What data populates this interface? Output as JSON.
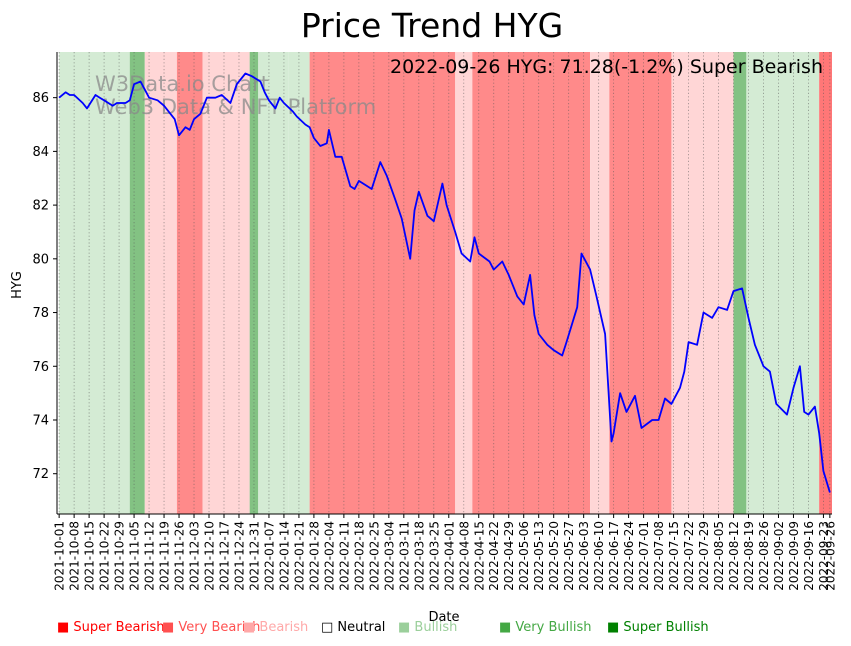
{
  "chart_data": {
    "type": "line",
    "title": "Price Trend HYG",
    "xlabel": "Date",
    "ylabel": "HYG",
    "annotation": "2022-09-26 HYG: 71.28(-1.2%) Super Bearish",
    "watermark": [
      "W3Data.io Chart",
      "Web3 Data & NFT Platform"
    ],
    "ylim": [
      70.5,
      87.7
    ],
    "yticks": [
      72,
      74,
      76,
      78,
      80,
      82,
      84,
      86
    ],
    "xrange": [
      "2021-09-30",
      "2022-09-27"
    ],
    "xticks": [
      "2021-10-01",
      "2021-10-08",
      "2021-10-15",
      "2021-10-22",
      "2021-10-29",
      "2021-11-05",
      "2021-11-12",
      "2021-11-19",
      "2021-11-26",
      "2021-12-03",
      "2021-12-10",
      "2021-12-17",
      "2021-12-24",
      "2021-12-31",
      "2022-01-07",
      "2022-01-14",
      "2022-01-21",
      "2022-01-28",
      "2022-02-04",
      "2022-02-11",
      "2022-02-18",
      "2022-02-25",
      "2022-03-04",
      "2022-03-11",
      "2022-03-18",
      "2022-03-25",
      "2022-04-01",
      "2022-04-08",
      "2022-04-15",
      "2022-04-22",
      "2022-04-29",
      "2022-05-06",
      "2022-05-13",
      "2022-05-20",
      "2022-05-27",
      "2022-06-03",
      "2022-06-10",
      "2022-06-17",
      "2022-06-24",
      "2022-07-01",
      "2022-07-08",
      "2022-07-15",
      "2022-07-22",
      "2022-07-29",
      "2022-08-05",
      "2022-08-12",
      "2022-08-19",
      "2022-08-26",
      "2022-09-02",
      "2022-09-09",
      "2022-09-16",
      "2022-09-23",
      "2022-09-26"
    ],
    "series": [
      {
        "name": "HYG",
        "color": "#0000ff",
        "points": [
          [
            "2021-10-01",
            86.0
          ],
          [
            "2021-10-04",
            86.2
          ],
          [
            "2021-10-06",
            86.1
          ],
          [
            "2021-10-08",
            86.1
          ],
          [
            "2021-10-12",
            85.8
          ],
          [
            "2021-10-14",
            85.6
          ],
          [
            "2021-10-18",
            86.1
          ],
          [
            "2021-10-20",
            86.0
          ],
          [
            "2021-10-22",
            85.9
          ],
          [
            "2021-10-26",
            85.7
          ],
          [
            "2021-10-28",
            85.8
          ],
          [
            "2021-11-01",
            85.8
          ],
          [
            "2021-11-03",
            85.9
          ],
          [
            "2021-11-05",
            86.5
          ],
          [
            "2021-11-08",
            86.6
          ],
          [
            "2021-11-10",
            86.3
          ],
          [
            "2021-11-12",
            86.0
          ],
          [
            "2021-11-16",
            85.9
          ],
          [
            "2021-11-19",
            85.7
          ],
          [
            "2021-11-24",
            85.2
          ],
          [
            "2021-11-26",
            84.6
          ],
          [
            "2021-11-29",
            84.9
          ],
          [
            "2021-12-01",
            84.8
          ],
          [
            "2021-12-03",
            85.2
          ],
          [
            "2021-12-06",
            85.4
          ],
          [
            "2021-12-09",
            86.0
          ],
          [
            "2021-12-13",
            86.0
          ],
          [
            "2021-12-16",
            86.1
          ],
          [
            "2021-12-20",
            85.8
          ],
          [
            "2021-12-23",
            86.5
          ],
          [
            "2021-12-27",
            86.9
          ],
          [
            "2021-12-30",
            86.8
          ],
          [
            "2022-01-03",
            86.6
          ],
          [
            "2022-01-05",
            86.2
          ],
          [
            "2022-01-07",
            85.9
          ],
          [
            "2022-01-10",
            85.6
          ],
          [
            "2022-01-12",
            86.0
          ],
          [
            "2022-01-14",
            85.8
          ],
          [
            "2022-01-18",
            85.5
          ],
          [
            "2022-01-20",
            85.3
          ],
          [
            "2022-01-24",
            85.0
          ],
          [
            "2022-01-26",
            84.9
          ],
          [
            "2022-01-28",
            84.5
          ],
          [
            "2022-01-31",
            84.2
          ],
          [
            "2022-02-03",
            84.3
          ],
          [
            "2022-02-04",
            84.8
          ],
          [
            "2022-02-07",
            83.8
          ],
          [
            "2022-02-10",
            83.8
          ],
          [
            "2022-02-14",
            82.7
          ],
          [
            "2022-02-16",
            82.6
          ],
          [
            "2022-02-18",
            82.9
          ],
          [
            "2022-02-22",
            82.7
          ],
          [
            "2022-02-24",
            82.6
          ],
          [
            "2022-02-28",
            83.6
          ],
          [
            "2022-03-03",
            83.1
          ],
          [
            "2022-03-07",
            82.2
          ],
          [
            "2022-03-10",
            81.5
          ],
          [
            "2022-03-14",
            80.0
          ],
          [
            "2022-03-16",
            81.8
          ],
          [
            "2022-03-18",
            82.5
          ],
          [
            "2022-03-22",
            81.6
          ],
          [
            "2022-03-25",
            81.4
          ],
          [
            "2022-03-29",
            82.8
          ],
          [
            "2022-03-31",
            82.0
          ],
          [
            "2022-04-04",
            81.0
          ],
          [
            "2022-04-07",
            80.2
          ],
          [
            "2022-04-11",
            79.9
          ],
          [
            "2022-04-13",
            80.8
          ],
          [
            "2022-04-15",
            80.2
          ],
          [
            "2022-04-20",
            79.9
          ],
          [
            "2022-04-22",
            79.6
          ],
          [
            "2022-04-26",
            79.9
          ],
          [
            "2022-04-29",
            79.4
          ],
          [
            "2022-05-03",
            78.6
          ],
          [
            "2022-05-06",
            78.3
          ],
          [
            "2022-05-09",
            79.4
          ],
          [
            "2022-05-11",
            77.9
          ],
          [
            "2022-05-13",
            77.2
          ],
          [
            "2022-05-17",
            76.8
          ],
          [
            "2022-05-20",
            76.6
          ],
          [
            "2022-05-24",
            76.4
          ],
          [
            "2022-05-26",
            76.9
          ],
          [
            "2022-05-31",
            78.2
          ],
          [
            "2022-06-02",
            80.2
          ],
          [
            "2022-06-06",
            79.6
          ],
          [
            "2022-06-09",
            78.6
          ],
          [
            "2022-06-13",
            77.2
          ],
          [
            "2022-06-16",
            73.2
          ],
          [
            "2022-06-17",
            73.5
          ],
          [
            "2022-06-20",
            75.0
          ],
          [
            "2022-06-23",
            74.3
          ],
          [
            "2022-06-27",
            74.9
          ],
          [
            "2022-06-30",
            73.7
          ],
          [
            "2022-07-05",
            74.0
          ],
          [
            "2022-07-08",
            74.0
          ],
          [
            "2022-07-11",
            74.8
          ],
          [
            "2022-07-14",
            74.6
          ],
          [
            "2022-07-18",
            75.2
          ],
          [
            "2022-07-20",
            75.8
          ],
          [
            "2022-07-22",
            76.9
          ],
          [
            "2022-07-26",
            76.8
          ],
          [
            "2022-07-29",
            78.0
          ],
          [
            "2022-08-02",
            77.8
          ],
          [
            "2022-08-05",
            78.2
          ],
          [
            "2022-08-09",
            78.1
          ],
          [
            "2022-08-12",
            78.8
          ],
          [
            "2022-08-16",
            78.9
          ],
          [
            "2022-08-19",
            77.8
          ],
          [
            "2022-08-22",
            76.8
          ],
          [
            "2022-08-26",
            76.0
          ],
          [
            "2022-08-29",
            75.8
          ],
          [
            "2022-09-01",
            74.6
          ],
          [
            "2022-09-06",
            74.2
          ],
          [
            "2022-09-09",
            75.2
          ],
          [
            "2022-09-12",
            76.0
          ],
          [
            "2022-09-14",
            74.3
          ],
          [
            "2022-09-16",
            74.2
          ],
          [
            "2022-09-19",
            74.5
          ],
          [
            "2022-09-21",
            73.5
          ],
          [
            "2022-09-23",
            72.1
          ],
          [
            "2022-09-26",
            71.3
          ]
        ]
      }
    ],
    "regimes": [
      [
        "2021-10-01",
        "2021-11-03",
        "Bullish"
      ],
      [
        "2021-11-03",
        "2021-11-10",
        "Super Bullish"
      ],
      [
        "2021-11-10",
        "2021-11-25",
        "Bearish"
      ],
      [
        "2021-11-25",
        "2021-12-07",
        "Very Bearish"
      ],
      [
        "2021-12-07",
        "2021-12-29",
        "Bearish"
      ],
      [
        "2021-12-29",
        "2022-01-02",
        "Super Bullish"
      ],
      [
        "2022-01-02",
        "2022-01-16",
        "Bullish"
      ],
      [
        "2022-01-16",
        "2022-01-26",
        "Bullish"
      ],
      [
        "2022-01-26",
        "2022-04-04",
        "Very Bearish"
      ],
      [
        "2022-04-04",
        "2022-04-12",
        "Bearish"
      ],
      [
        "2022-04-12",
        "2022-06-06",
        "Very Bearish"
      ],
      [
        "2022-06-06",
        "2022-06-15",
        "Bearish"
      ],
      [
        "2022-06-15",
        "2022-07-14",
        "Very Bearish"
      ],
      [
        "2022-07-14",
        "2022-08-12",
        "Bearish"
      ],
      [
        "2022-08-12",
        "2022-08-18",
        "Super Bullish"
      ],
      [
        "2022-08-18",
        "2022-09-21",
        "Bullish"
      ],
      [
        "2022-09-21",
        "2022-09-27",
        "Super Bearish"
      ]
    ],
    "legend": [
      {
        "label": "Super Bearish",
        "color": "#ff0000"
      },
      {
        "label": "Very Bearish",
        "color": "#ff5050"
      },
      {
        "label": "Bearish",
        "color": "#ffa8a8"
      },
      {
        "label": "Neutral",
        "color": "#000000"
      },
      {
        "label": "Bullish",
        "color": "#9bcf9b"
      },
      {
        "label": "Very Bullish",
        "color": "#44a844"
      },
      {
        "label": "Super Bullish",
        "color": "#008000"
      }
    ],
    "regime_colors": {
      "Super Bearish": "#ff7777",
      "Very Bearish": "#ff8a8a",
      "Bearish": "#ffd6d6",
      "Neutral": "#ffffff",
      "Bullish": "#d4ebd4",
      "Very Bullish": "#a8d5a8",
      "Super Bullish": "#83c283"
    },
    "legend_symbols": {
      "filled": "■",
      "empty": "□"
    }
  }
}
